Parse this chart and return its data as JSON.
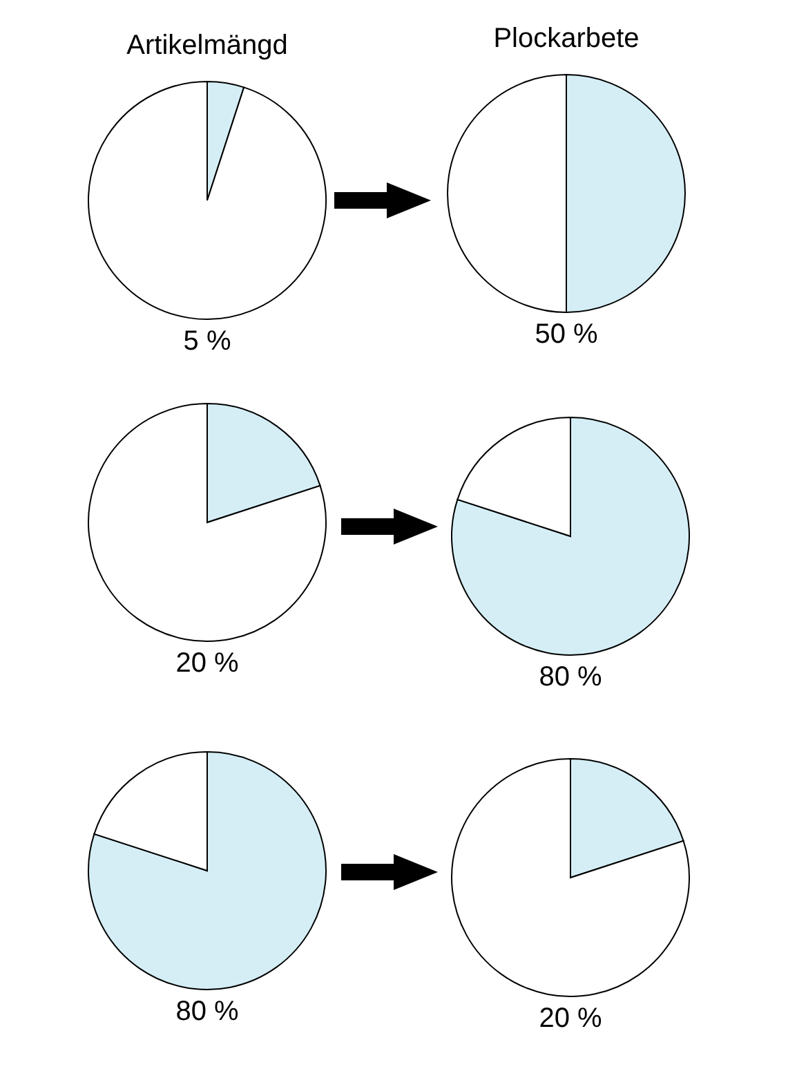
{
  "chart_data": [
    {
      "type": "pie",
      "title": "Artikelmängd",
      "categories": [
        null,
        null
      ],
      "values": [
        5,
        95
      ],
      "colors": [
        "#d5eef6",
        "#ffffff"
      ],
      "annotations": [
        "5 %"
      ]
    },
    {
      "type": "pie",
      "title": "Plockarbete",
      "categories": [
        null,
        null
      ],
      "values": [
        50,
        50
      ],
      "colors": [
        "#d5eef6",
        "#ffffff"
      ],
      "annotations": [
        "50 %"
      ]
    },
    {
      "type": "pie",
      "categories": [
        null,
        null
      ],
      "values": [
        20,
        80
      ],
      "colors": [
        "#d5eef6",
        "#ffffff"
      ],
      "annotations": [
        "20 %"
      ]
    },
    {
      "type": "pie",
      "categories": [
        null,
        null
      ],
      "values": [
        80,
        20
      ],
      "colors": [
        "#d5eef6",
        "#ffffff"
      ],
      "annotations": [
        "80 %"
      ]
    },
    {
      "type": "pie",
      "categories": [
        null,
        null
      ],
      "values": [
        80,
        20
      ],
      "colors": [
        "#d5eef6",
        "#ffffff"
      ],
      "annotations": [
        "80 %"
      ]
    },
    {
      "type": "pie",
      "categories": [
        null,
        null
      ],
      "values": [
        20,
        80
      ],
      "colors": [
        "#d5eef6",
        "#ffffff"
      ],
      "annotations": [
        "20 %"
      ]
    }
  ]
}
